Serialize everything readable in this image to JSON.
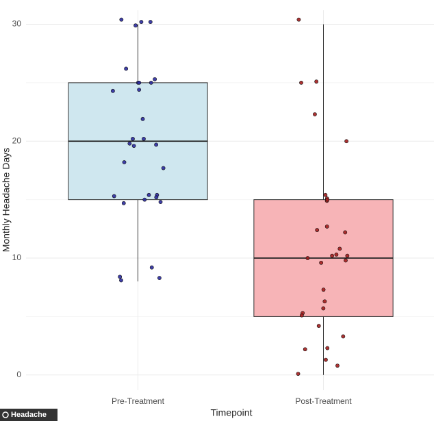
{
  "chart_data": {
    "type": "box",
    "xlabel": "Timepoint",
    "ylabel": "Monthly Headache Days",
    "categories": [
      "Pre-Treatment",
      "Post-Treatment"
    ],
    "ylim": [
      -1.3,
      31.2
    ],
    "yticks": [
      0,
      10,
      20,
      30
    ],
    "yminor": [
      5,
      15,
      25
    ],
    "grid": true,
    "watermark": "Headache",
    "series": [
      {
        "color": "#cfe7ef",
        "point_color": "#2a2a9e",
        "min": 8,
        "q1": 15,
        "median": 20,
        "q3": 25,
        "max": 30,
        "points": [
          30.4,
          30.2,
          30.2,
          29.9,
          26.2,
          25.3,
          25.0,
          25.0,
          25.0,
          24.4,
          24.3,
          21.9,
          20.2,
          20.2,
          19.7,
          19.8,
          19.6,
          18.2,
          17.7,
          15.4,
          15.4,
          15.2,
          15.3,
          15.0,
          14.8,
          14.7,
          9.2,
          8.4,
          8.3,
          8.1
        ]
      },
      {
        "color": "#f7b4b7",
        "point_color": "#a31d1d",
        "min": 0,
        "q1": 5,
        "median": 10,
        "q3": 15,
        "max": 30,
        "points": [
          30.4,
          25.0,
          25.1,
          22.3,
          20.0,
          15.4,
          15.1,
          14.9,
          15.0,
          12.7,
          12.4,
          12.2,
          10.8,
          10.0,
          10.3,
          10.2,
          10.2,
          9.6,
          9.8,
          7.3,
          6.3,
          5.7,
          5.3,
          5.1,
          4.2,
          3.3,
          2.3,
          2.2,
          1.3,
          0.8,
          0.1
        ]
      }
    ]
  }
}
